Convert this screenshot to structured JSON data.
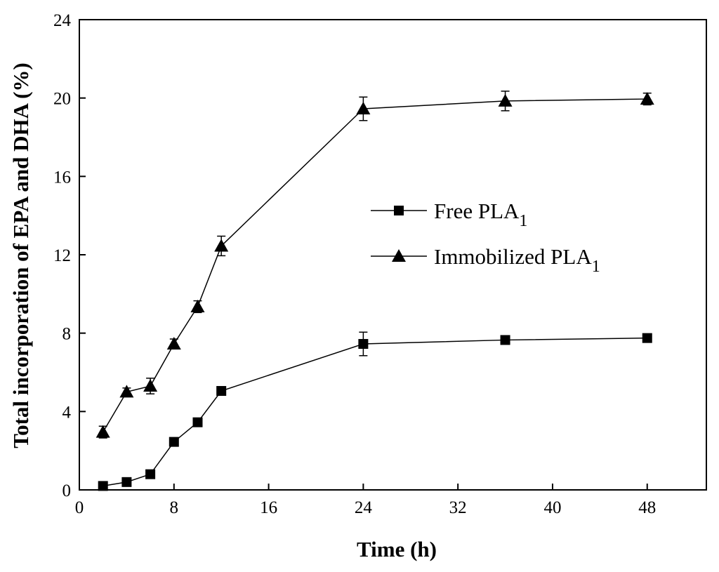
{
  "chart_data": {
    "type": "line",
    "title": "",
    "xlabel": "Time (h)",
    "ylabel": "Total incorporation of EPA and DHA (%)",
    "xlim": [
      0,
      53
    ],
    "ylim": [
      0,
      24
    ],
    "xticks": [
      0,
      8,
      16,
      24,
      32,
      40,
      48
    ],
    "yticks": [
      0,
      4,
      8,
      12,
      16,
      20,
      24
    ],
    "grid": false,
    "legend_position": "center-right",
    "series": [
      {
        "name": "Free PLA",
        "subscript": "1",
        "marker": "square",
        "x": [
          2,
          4,
          6,
          8,
          10,
          12,
          24,
          36,
          48
        ],
        "y": [
          0.2,
          0.4,
          0.8,
          2.45,
          3.45,
          5.05,
          7.45,
          7.65,
          7.75
        ],
        "err": [
          0.1,
          0.1,
          0.1,
          0.15,
          0.15,
          0.15,
          0.6,
          0.15,
          0.2
        ]
      },
      {
        "name": "Immobilized PLA",
        "subscript": "1",
        "marker": "triangle",
        "x": [
          2,
          4,
          6,
          8,
          10,
          12,
          24,
          36,
          48
        ],
        "y": [
          2.95,
          5.0,
          5.3,
          7.45,
          9.35,
          12.45,
          19.45,
          19.85,
          19.95
        ],
        "err": [
          0.3,
          0.2,
          0.4,
          0.25,
          0.3,
          0.5,
          0.6,
          0.5,
          0.3
        ]
      }
    ]
  }
}
